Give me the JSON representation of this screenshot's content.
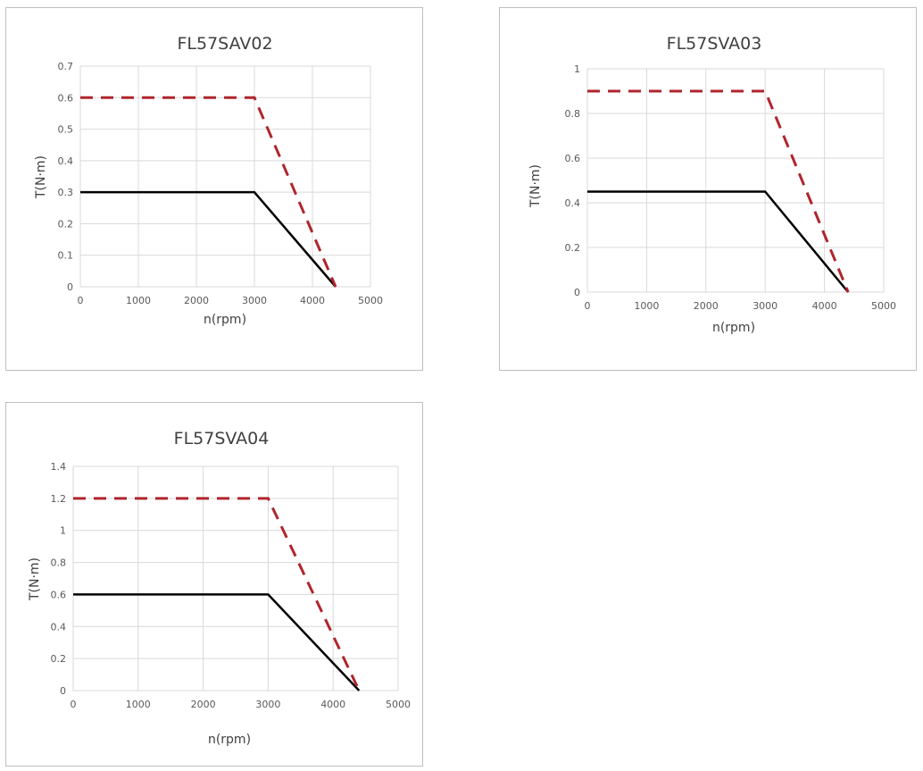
{
  "chart_data": [
    {
      "type": "line",
      "title": "FL57SAV02",
      "xlabel": "n(rpm)",
      "ylabel": "T(N·m)",
      "xlim": [
        0,
        5000
      ],
      "ylim": [
        0,
        0.7
      ],
      "xticks": [
        "0",
        "1000",
        "2000",
        "3000",
        "4000",
        "5000"
      ],
      "yticks": [
        "0",
        "0.1",
        "0.2",
        "0.3",
        "0.4",
        "0.5",
        "0.6",
        "0.7"
      ],
      "grid": true,
      "series": [
        {
          "style": "solid",
          "color": "#000000",
          "x": [
            0,
            3000,
            4400
          ],
          "y": [
            0.3,
            0.3,
            0
          ]
        },
        {
          "style": "dashed",
          "color": "#b0252c",
          "x": [
            0,
            3000,
            4400
          ],
          "y": [
            0.6,
            0.6,
            0
          ]
        }
      ]
    },
    {
      "type": "line",
      "title": "FL57SVA03",
      "xlabel": "n(rpm)",
      "ylabel": "T(N·m)",
      "xlim": [
        0,
        5000
      ],
      "ylim": [
        0,
        1
      ],
      "xticks": [
        "0",
        "1000",
        "2000",
        "3000",
        "4000",
        "5000"
      ],
      "yticks": [
        "0",
        "0.2",
        "0.4",
        "0.6",
        "0.8",
        "1"
      ],
      "grid": true,
      "series": [
        {
          "style": "solid",
          "color": "#000000",
          "x": [
            0,
            3000,
            4400
          ],
          "y": [
            0.45,
            0.45,
            0
          ]
        },
        {
          "style": "dashed",
          "color": "#b0252c",
          "x": [
            0,
            3000,
            4400
          ],
          "y": [
            0.9,
            0.9,
            0
          ]
        }
      ]
    },
    {
      "type": "line",
      "title": "FL57SVA04",
      "xlabel": "n(rpm)",
      "ylabel": "T(N·m)",
      "xlim": [
        0,
        5000
      ],
      "ylim": [
        0,
        1.4
      ],
      "xticks": [
        "0",
        "1000",
        "2000",
        "3000",
        "4000",
        "5000"
      ],
      "yticks": [
        "0",
        "0.2",
        "0.4",
        "0.6",
        "0.8",
        "1",
        "1.2",
        "1.4"
      ],
      "grid": true,
      "series": [
        {
          "style": "solid",
          "color": "#000000",
          "x": [
            0,
            3000,
            4400
          ],
          "y": [
            0.6,
            0.6,
            0
          ]
        },
        {
          "style": "dashed",
          "color": "#b0252c",
          "x": [
            0,
            3000,
            4400
          ],
          "y": [
            1.2,
            1.2,
            0
          ]
        }
      ]
    }
  ]
}
